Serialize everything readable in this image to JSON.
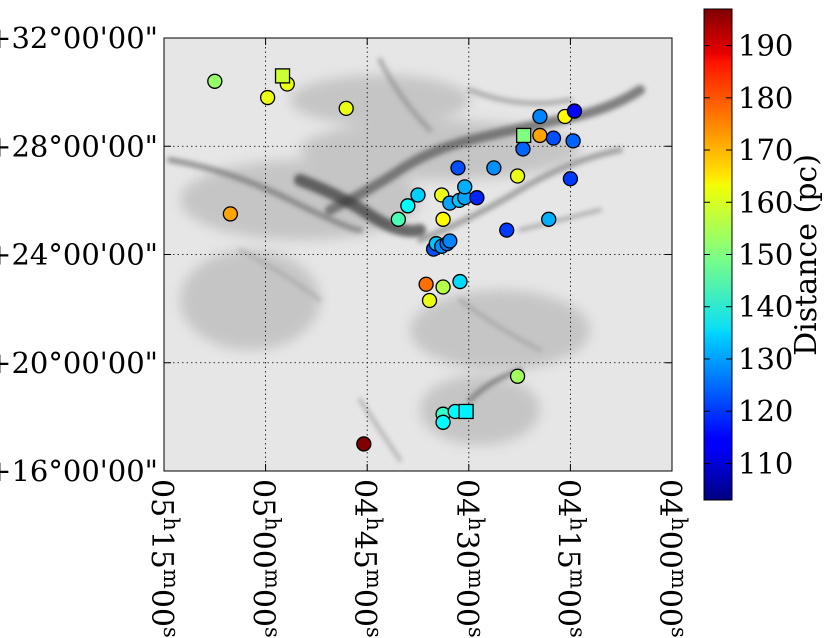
{
  "chart_data": {
    "type": "scatter",
    "title": "",
    "xlabel": "",
    "ylabel": "",
    "colorbar_label": "Distance (pc)",
    "colorbar_range": [
      103,
      197
    ],
    "colorbar_ticks": [
      110,
      120,
      130,
      140,
      150,
      160,
      170,
      180,
      190
    ],
    "colormap": "jet",
    "x_axis": {
      "unit": "RA (minutes of time from 04h00m)",
      "range": [
        75,
        0
      ],
      "ticks": [
        {
          "value": 75,
          "h": "05",
          "m": "15",
          "s": "00"
        },
        {
          "value": 60,
          "h": "05",
          "m": "00",
          "s": "00"
        },
        {
          "value": 45,
          "h": "04",
          "m": "45",
          "s": "00"
        },
        {
          "value": 30,
          "h": "04",
          "m": "30",
          "s": "00"
        },
        {
          "value": 15,
          "h": "04",
          "m": "15",
          "s": "00"
        },
        {
          "value": 0,
          "h": "04",
          "m": "00",
          "s": "00"
        }
      ]
    },
    "y_axis": {
      "unit": "Dec (degrees)",
      "range": [
        16,
        32
      ],
      "ticks": [
        {
          "value": 32,
          "label": "+32°00'00\""
        },
        {
          "value": 28,
          "label": "+28°00'00\""
        },
        {
          "value": 24,
          "label": "+24°00'00\""
        },
        {
          "value": 20,
          "label": "+20°00'00\""
        },
        {
          "value": 16,
          "label": "+16°00'00\""
        }
      ]
    },
    "grid": true,
    "background": "grayscale dust extinction map",
    "points": [
      {
        "ra": 67.5,
        "dec": 30.4,
        "dist": 152,
        "marker": "circle"
      },
      {
        "ra": 65.2,
        "dec": 25.5,
        "dist": 170,
        "marker": "circle"
      },
      {
        "ra": 59.7,
        "dec": 29.8,
        "dist": 160,
        "marker": "circle"
      },
      {
        "ra": 56.8,
        "dec": 30.3,
        "dist": 160,
        "marker": "circle"
      },
      {
        "ra": 57.5,
        "dec": 30.6,
        "dist": 157,
        "marker": "square"
      },
      {
        "ra": 48.1,
        "dec": 29.4,
        "dist": 160,
        "marker": "circle"
      },
      {
        "ra": 45.5,
        "dec": 17.0,
        "dist": 197,
        "marker": "circle"
      },
      {
        "ra": 40.4,
        "dec": 25.3,
        "dist": 145,
        "marker": "circle"
      },
      {
        "ra": 39.0,
        "dec": 25.8,
        "dist": 138,
        "marker": "circle"
      },
      {
        "ra": 37.5,
        "dec": 26.2,
        "dist": 134,
        "marker": "circle"
      },
      {
        "ra": 35.8,
        "dec": 22.3,
        "dist": 160,
        "marker": "circle"
      },
      {
        "ra": 36.3,
        "dec": 22.9,
        "dist": 175,
        "marker": "circle"
      },
      {
        "ra": 35.2,
        "dec": 24.2,
        "dist": 122,
        "marker": "circle"
      },
      {
        "ra": 34.8,
        "dec": 24.4,
        "dist": 133,
        "marker": "circle"
      },
      {
        "ra": 34.0,
        "dec": 24.3,
        "dist": 128,
        "marker": "circle"
      },
      {
        "ra": 33.2,
        "dec": 24.4,
        "dist": 126,
        "marker": "circle"
      },
      {
        "ra": 32.8,
        "dec": 24.5,
        "dist": 127,
        "marker": "circle"
      },
      {
        "ra": 34.0,
        "dec": 26.2,
        "dist": 160,
        "marker": "circle"
      },
      {
        "ra": 33.8,
        "dec": 25.3,
        "dist": 162,
        "marker": "circle"
      },
      {
        "ra": 32.8,
        "dec": 25.9,
        "dist": 130,
        "marker": "circle"
      },
      {
        "ra": 31.4,
        "dec": 26.0,
        "dist": 133,
        "marker": "circle"
      },
      {
        "ra": 30.6,
        "dec": 26.1,
        "dist": 130,
        "marker": "circle"
      },
      {
        "ra": 30.6,
        "dec": 26.5,
        "dist": 131,
        "marker": "circle"
      },
      {
        "ra": 31.6,
        "dec": 27.2,
        "dist": 122,
        "marker": "circle"
      },
      {
        "ra": 28.8,
        "dec": 26.1,
        "dist": 118,
        "marker": "circle"
      },
      {
        "ra": 33.8,
        "dec": 22.8,
        "dist": 155,
        "marker": "circle"
      },
      {
        "ra": 31.3,
        "dec": 23.0,
        "dist": 135,
        "marker": "circle"
      },
      {
        "ra": 33.8,
        "dec": 18.1,
        "dist": 143,
        "marker": "circle"
      },
      {
        "ra": 33.8,
        "dec": 17.8,
        "dist": 138,
        "marker": "circle"
      },
      {
        "ra": 32.0,
        "dec": 18.2,
        "dist": 138,
        "marker": "circle"
      },
      {
        "ra": 30.4,
        "dec": 18.2,
        "dist": 137,
        "marker": "square"
      },
      {
        "ra": 26.3,
        "dec": 27.2,
        "dist": 128,
        "marker": "circle"
      },
      {
        "ra": 24.4,
        "dec": 24.9,
        "dist": 120,
        "marker": "circle"
      },
      {
        "ra": 22.8,
        "dec": 26.9,
        "dist": 160,
        "marker": "circle"
      },
      {
        "ra": 22.0,
        "dec": 27.9,
        "dist": 124,
        "marker": "circle"
      },
      {
        "ra": 21.9,
        "dec": 28.4,
        "dist": 150,
        "marker": "square"
      },
      {
        "ra": 22.8,
        "dec": 19.5,
        "dist": 153,
        "marker": "circle"
      },
      {
        "ra": 19.5,
        "dec": 29.1,
        "dist": 127,
        "marker": "circle"
      },
      {
        "ra": 19.5,
        "dec": 28.4,
        "dist": 170,
        "marker": "circle"
      },
      {
        "ra": 17.5,
        "dec": 28.3,
        "dist": 122,
        "marker": "circle"
      },
      {
        "ra": 15.8,
        "dec": 29.1,
        "dist": 162,
        "marker": "circle"
      },
      {
        "ra": 15.0,
        "dec": 26.8,
        "dist": 120,
        "marker": "circle"
      },
      {
        "ra": 14.6,
        "dec": 28.2,
        "dist": 124,
        "marker": "circle"
      },
      {
        "ra": 14.4,
        "dec": 29.3,
        "dist": 115,
        "marker": "circle"
      },
      {
        "ra": 18.2,
        "dec": 25.3,
        "dist": 131,
        "marker": "circle"
      }
    ]
  }
}
